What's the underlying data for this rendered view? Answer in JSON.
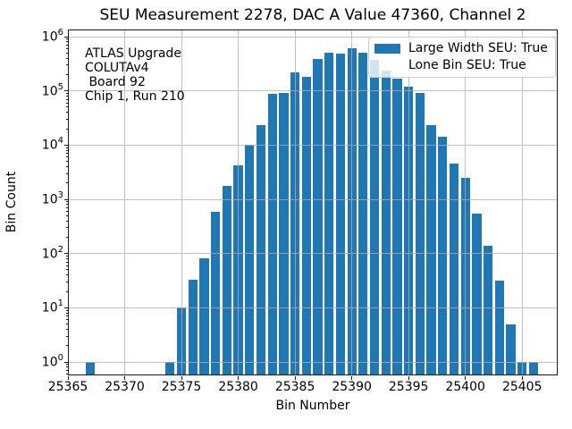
{
  "chart": {
    "title": "SEU Measurement 2278, DAC A Value 47360, Channel 2",
    "xlabel": "Bin Number",
    "ylabel": "Bin Count",
    "annotation_lines": [
      "ATLAS Upgrade",
      "COLUTAv4",
      " Board 92",
      "Chip 1, Run 210"
    ],
    "legend": [
      {
        "label": "Large Width SEU: True",
        "swatch": true
      },
      {
        "label": "Lone Bin SEU: True",
        "swatch": false
      }
    ],
    "colors": {
      "bar": "#1f77b4",
      "grid": "#b0b0b0",
      "spine": "#1a1a1a",
      "legend_edge": "#cccccc"
    }
  },
  "chart_data": {
    "type": "bar",
    "title": "SEU Measurement 2278, DAC A Value 47360, Channel 2",
    "xlabel": "Bin Number",
    "ylabel": "Bin Count",
    "x_scale": "linear",
    "y_scale": "log",
    "grid": true,
    "legend_position": "upper right",
    "xlim": [
      25365,
      25408.1
    ],
    "ylim": [
      0.57,
      1340000
    ],
    "x_ticks": [
      25365,
      25370,
      25375,
      25380,
      25385,
      25390,
      25395,
      25400,
      25405
    ],
    "y_tick_exponents": [
      0,
      1,
      2,
      3,
      4,
      5,
      6
    ],
    "bins": [
      25367,
      25374,
      25375,
      25376,
      25377,
      25378,
      25379,
      25380,
      25381,
      25382,
      25383,
      25384,
      25385,
      25386,
      25387,
      25388,
      25389,
      25390,
      25391,
      25392,
      25393,
      25394,
      25395,
      25396,
      25397,
      25398,
      25399,
      25400,
      25401,
      25402,
      25403,
      25404,
      25405,
      25406
    ],
    "counts": [
      1,
      1,
      10,
      33,
      82,
      580,
      1800,
      4200,
      10000,
      23000,
      88000,
      90000,
      220000,
      180000,
      390000,
      500000,
      480000,
      620000,
      500000,
      370000,
      240000,
      170000,
      120000,
      92000,
      23000,
      14000,
      4600,
      2500,
      540,
      140,
      32,
      5,
      1,
      1
    ]
  }
}
